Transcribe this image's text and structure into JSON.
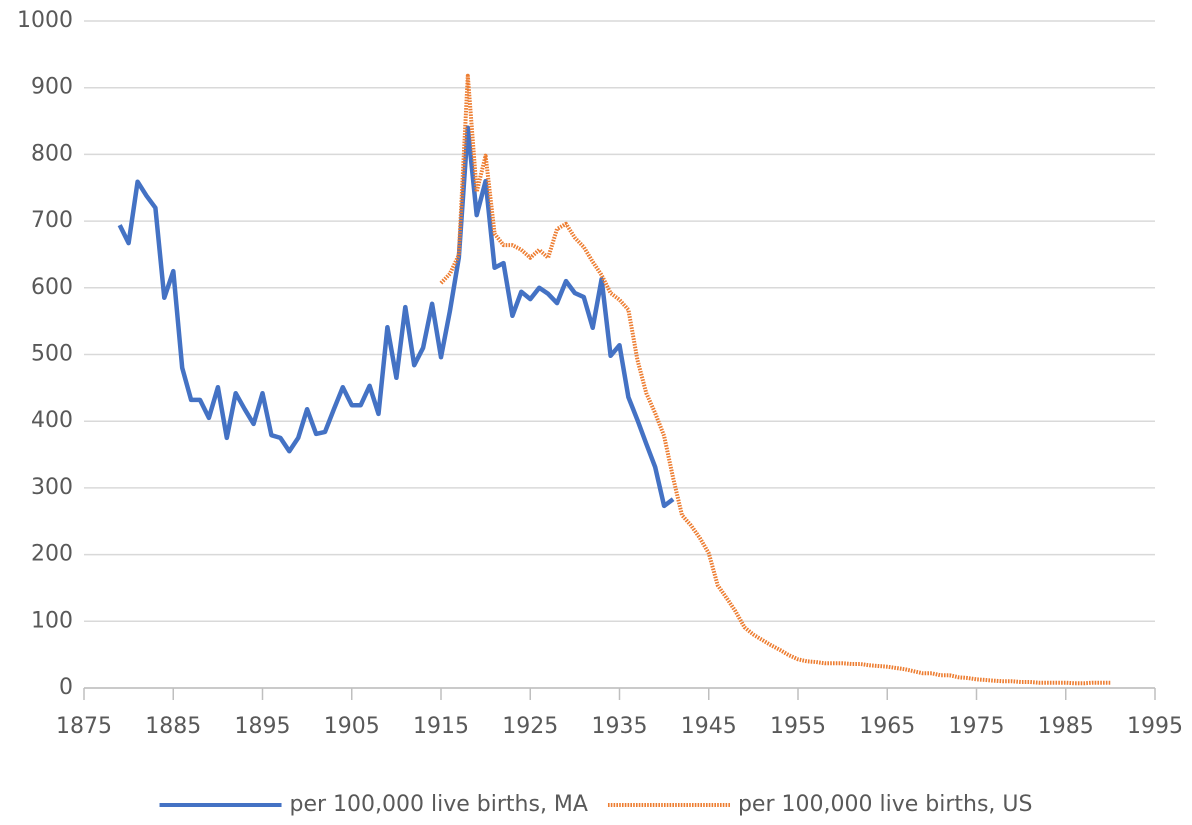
{
  "chart_data": {
    "type": "line",
    "xlim": [
      1875,
      1995
    ],
    "xticks": [
      1875,
      1885,
      1895,
      1905,
      1915,
      1925,
      1935,
      1945,
      1955,
      1965,
      1975,
      1985,
      1995
    ],
    "ylim": [
      0,
      1000
    ],
    "yticks": [
      0,
      100,
      200,
      300,
      400,
      500,
      600,
      700,
      800,
      900,
      1000
    ],
    "grid": true,
    "legend": "bottom",
    "series": [
      {
        "name": "per 100,000 live births, MA",
        "color": "#4472c4",
        "style": "solid",
        "x": [
          1879,
          1880,
          1881,
          1882,
          1883,
          1884,
          1885,
          1886,
          1887,
          1888,
          1889,
          1890,
          1891,
          1892,
          1893,
          1894,
          1895,
          1896,
          1897,
          1898,
          1899,
          1900,
          1901,
          1902,
          1903,
          1904,
          1905,
          1906,
          1907,
          1908,
          1909,
          1910,
          1911,
          1912,
          1913,
          1914,
          1915,
          1916,
          1917,
          1918,
          1919,
          1920,
          1921,
          1922,
          1923,
          1924,
          1925,
          1926,
          1927,
          1928,
          1929,
          1930,
          1931,
          1932,
          1933,
          1934,
          1935,
          1936,
          1937,
          1938,
          1939,
          1940,
          1941
        ],
        "values": [
          694,
          667,
          759,
          738,
          720,
          585,
          625,
          480,
          432,
          432,
          405,
          451,
          375,
          442,
          418,
          396,
          442,
          379,
          375,
          355,
          375,
          418,
          381,
          384,
          418,
          451,
          424,
          424,
          453,
          411,
          541,
          465,
          571,
          484,
          510,
          576,
          496,
          565,
          645,
          840,
          709,
          760,
          630,
          637,
          558,
          594,
          583,
          600,
          591,
          577,
          610,
          592,
          586,
          540,
          613,
          498,
          514,
          436,
          402,
          366,
          331,
          273,
          283
        ]
      },
      {
        "name": "per 100,000 live births, US",
        "color": "#ed7d31",
        "style": "dotted",
        "x": [
          1915,
          1916,
          1917,
          1918,
          1919,
          1920,
          1921,
          1922,
          1923,
          1924,
          1925,
          1926,
          1927,
          1928,
          1929,
          1930,
          1931,
          1932,
          1933,
          1934,
          1935,
          1936,
          1937,
          1938,
          1939,
          1940,
          1941,
          1942,
          1943,
          1944,
          1945,
          1946,
          1947,
          1948,
          1949,
          1950,
          1951,
          1952,
          1953,
          1954,
          1955,
          1956,
          1957,
          1958,
          1959,
          1960,
          1961,
          1962,
          1963,
          1964,
          1965,
          1966,
          1967,
          1968,
          1969,
          1970,
          1971,
          1972,
          1973,
          1974,
          1975,
          1976,
          1977,
          1978,
          1979,
          1980,
          1981,
          1982,
          1983,
          1984,
          1985,
          1986,
          1987,
          1988,
          1989,
          1990
        ],
        "values": [
          607,
          621,
          649,
          918,
          744,
          798,
          681,
          664,
          664,
          657,
          645,
          657,
          645,
          688,
          696,
          675,
          661,
          639,
          619,
          592,
          582,
          567,
          492,
          442,
          412,
          378,
          315,
          259,
          244,
          225,
          202,
          154,
          135,
          115,
          91,
          80,
          72,
          64,
          57,
          49,
          43,
          40,
          39,
          37,
          37,
          37,
          36,
          36,
          34,
          33,
          32,
          30,
          28,
          25,
          22,
          22,
          19,
          19,
          16,
          15,
          13,
          12,
          11,
          10,
          10,
          9,
          9,
          8,
          8,
          8,
          8,
          7,
          7,
          8,
          8,
          8
        ]
      }
    ]
  }
}
